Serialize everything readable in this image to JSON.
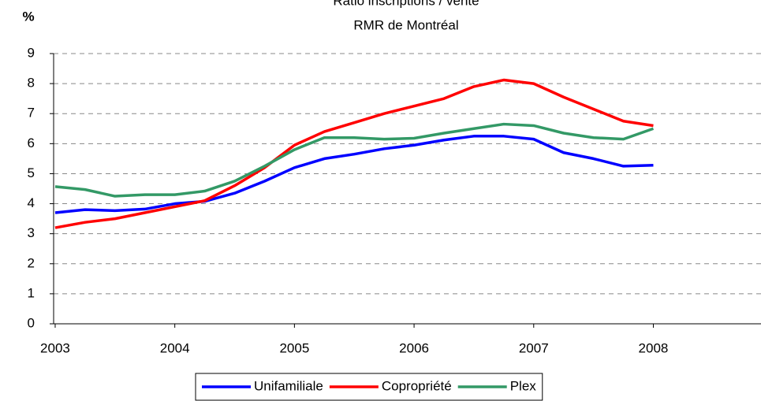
{
  "chart_data": {
    "type": "line",
    "title": "Ratio inscriptions / vente",
    "subtitle": "RMR de Montréal",
    "y_label": "%",
    "x": [
      2003,
      2003.25,
      2003.5,
      2003.75,
      2004,
      2004.25,
      2004.5,
      2004.75,
      2005,
      2005.25,
      2005.5,
      2005.75,
      2006,
      2006.25,
      2006.5,
      2006.75,
      2007,
      2007.25,
      2007.5,
      2007.75,
      2008
    ],
    "series": [
      {
        "name": "Unifamiliale",
        "color": "#0000ff",
        "values": [
          3.7,
          3.8,
          3.77,
          3.82,
          4.0,
          4.08,
          4.35,
          4.75,
          5.2,
          5.5,
          5.65,
          5.83,
          5.95,
          6.12,
          6.25,
          6.25,
          6.15,
          5.7,
          5.5,
          5.25,
          5.28
        ]
      },
      {
        "name": "Copropriété",
        "color": "#ff0000",
        "values": [
          3.2,
          3.38,
          3.5,
          3.7,
          3.9,
          4.1,
          4.6,
          5.2,
          5.95,
          6.4,
          6.7,
          7.0,
          7.25,
          7.5,
          7.9,
          8.12,
          8.0,
          7.55,
          7.15,
          6.75,
          6.6
        ]
      },
      {
        "name": "Plex",
        "color": "#339966",
        "values": [
          4.57,
          4.47,
          4.25,
          4.3,
          4.3,
          4.42,
          4.75,
          5.25,
          5.8,
          6.2,
          6.2,
          6.15,
          6.18,
          6.35,
          6.5,
          6.65,
          6.6,
          6.35,
          6.2,
          6.15,
          6.5
        ]
      }
    ],
    "xlim": [
      2002.987,
      2008.9
    ],
    "xticks": [
      2003,
      2004,
      2005,
      2006,
      2007,
      2008
    ],
    "ylim": [
      0,
      9
    ],
    "yticks": [
      0,
      1,
      2,
      3,
      4,
      5,
      6,
      7,
      8,
      9
    ],
    "grid": true,
    "legend": "bottom"
  }
}
